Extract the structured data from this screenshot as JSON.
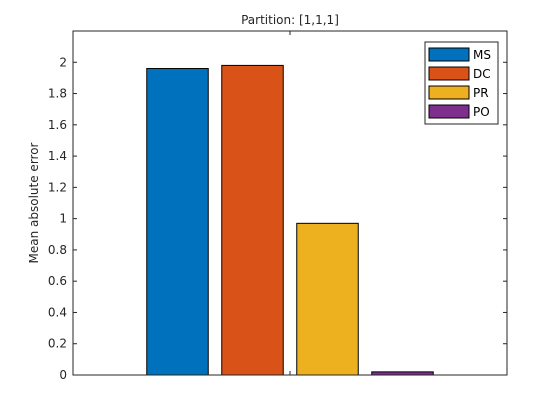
{
  "chart_data": {
    "type": "bar",
    "title": "Partition: [1,1,1]",
    "xlabel": "",
    "ylabel": "Mean absolute error",
    "ylim": [
      0,
      2.2
    ],
    "yticks": [
      0,
      0.2,
      0.4,
      0.6,
      0.8,
      1,
      1.2,
      1.4,
      1.6,
      1.8,
      2
    ],
    "ytick_labels": [
      "0",
      "0.2",
      "0.4",
      "0.6",
      "0.8",
      "1",
      "1.2",
      "1.4",
      "1.6",
      "1.8",
      "2"
    ],
    "series": [
      {
        "name": "MS",
        "values": [
          1.96
        ],
        "color": "#0072BD"
      },
      {
        "name": "DC",
        "values": [
          1.98
        ],
        "color": "#D95319"
      },
      {
        "name": "PR",
        "values": [
          0.97
        ],
        "color": "#EDB120"
      },
      {
        "name": "PO",
        "values": [
          0.02
        ],
        "color": "#7E2F8E"
      }
    ],
    "grid": false,
    "legend_position": "top-right"
  }
}
